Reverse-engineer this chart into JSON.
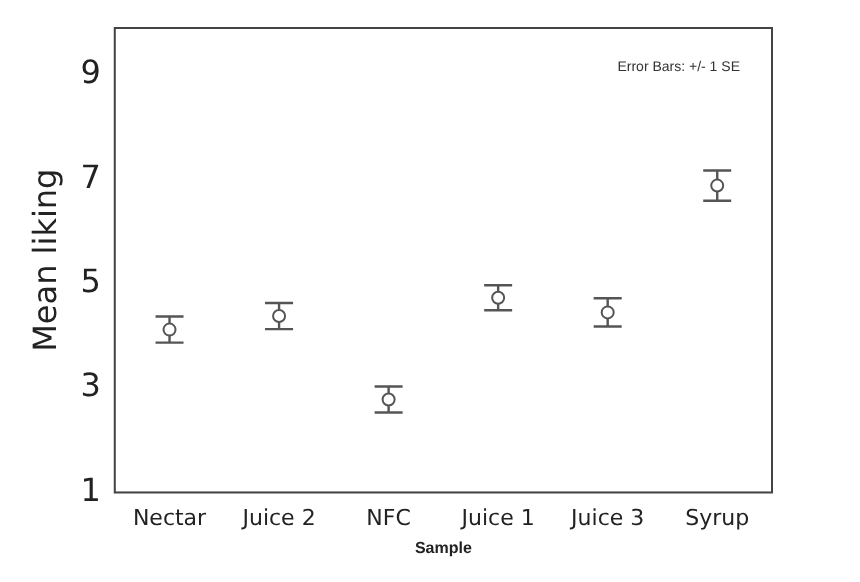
{
  "chart_data": {
    "type": "scatter",
    "xlabel": "Sample",
    "ylabel": "Mean liking",
    "categories": [
      "Nectar",
      "Juice 2",
      "NFC",
      "Juice 1",
      "Juice 3",
      "Syrup"
    ],
    "values": [
      4.12,
      4.38,
      2.78,
      4.73,
      4.45,
      6.88
    ],
    "errors": [
      0.25,
      0.25,
      0.25,
      0.24,
      0.27,
      0.29
    ],
    "color": "#555555",
    "marker": "circle",
    "ylim": [
      1,
      9.9
    ],
    "yticks": [
      1,
      3,
      5,
      7,
      9
    ],
    "grid": false,
    "legend": false,
    "annotations": [
      "Error Bars: +/- 1 SE"
    ]
  }
}
